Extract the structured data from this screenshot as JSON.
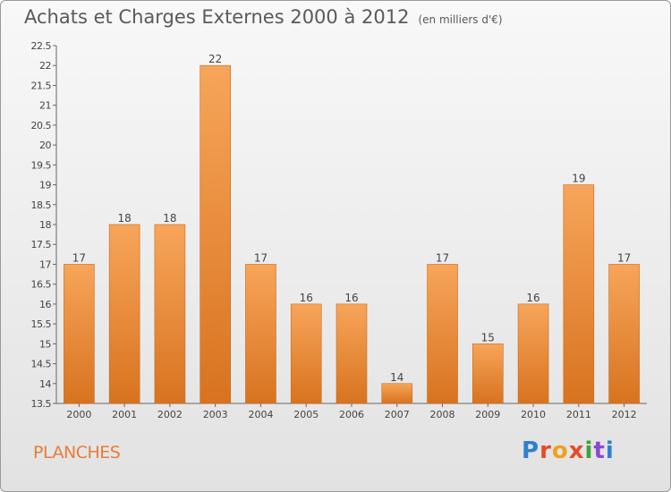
{
  "title": "Achats et Charges Externes 2000 à 2012",
  "unit": "(en milliers d'€)",
  "town": "PLANCHES",
  "brand": "Proxiti",
  "chart_data": {
    "type": "bar",
    "title": "Achats et Charges Externes 2000 à 2012",
    "subtitle": "(en milliers d'€)",
    "xlabel": "",
    "ylabel": "",
    "categories": [
      "2000",
      "2001",
      "2002",
      "2003",
      "2004",
      "2005",
      "2006",
      "2007",
      "2008",
      "2009",
      "2010",
      "2011",
      "2012"
    ],
    "values": [
      17,
      18,
      18,
      22,
      17,
      16,
      16,
      14,
      17,
      15,
      16,
      19,
      17
    ],
    "data_labels": [
      "17",
      "18",
      "18",
      "22",
      "17",
      "16",
      "16",
      "14",
      "17",
      "15",
      "16",
      "19",
      "17"
    ],
    "ylim": [
      13.5,
      22.5
    ],
    "yticks": [
      13.5,
      14,
      14.5,
      15,
      15.5,
      16,
      16.5,
      17,
      17.5,
      18,
      18.5,
      19,
      19.5,
      20,
      20.5,
      21,
      21.5,
      22,
      22.5
    ],
    "ytick_labels": [
      "13.5",
      "14",
      "14.5",
      "15",
      "15.5",
      "16",
      "16.5",
      "17",
      "17.5",
      "18",
      "18.5",
      "19",
      "19.5",
      "20",
      "20.5",
      "21",
      "21.5",
      "22",
      "22.5"
    ],
    "grid": false,
    "legend": "none",
    "colors": {
      "bar_top": "#f7a55a",
      "bar_bottom": "#d8731f",
      "bar_stroke": "#c96a1c",
      "axis": "#666666",
      "text": "#444444"
    }
  }
}
